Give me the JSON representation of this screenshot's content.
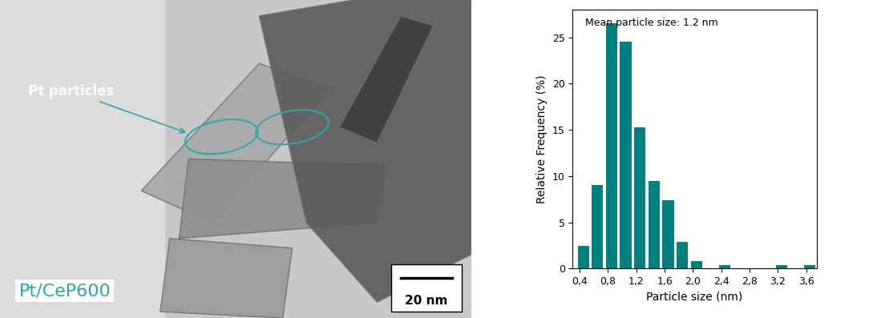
{
  "micrograph": {
    "annotation": "Pt particles",
    "sample": "Pt/CeP600",
    "scale_bar": "20 nm"
  },
  "chart_data": {
    "type": "histogram",
    "annotation": "Mean particle size: 1.2 nm",
    "x_label": "Particle size (nm)",
    "y_label": "Relative Frequency (%)",
    "bins": [
      0.35,
      0.55,
      0.75,
      0.95,
      1.15,
      1.35,
      1.55,
      1.75,
      1.95,
      2.15,
      2.35,
      2.55,
      2.75,
      2.95,
      3.15,
      3.35,
      3.55,
      3.75
    ],
    "counts": [
      2.5,
      9.0,
      26.5,
      24.5,
      15.3,
      9.5,
      7.4,
      2.9,
      0.8,
      0.0,
      0.4,
      0.0,
      0.0,
      0.0,
      0.4,
      0.0,
      0.4
    ],
    "color": "#00807f",
    "xlim": [
      0.3,
      3.75
    ],
    "xticks": [
      {
        "value": 0.4,
        "label": "0,4"
      },
      {
        "value": 0.8,
        "label": "0,8"
      },
      {
        "value": 1.2,
        "label": "1,2"
      },
      {
        "value": 1.6,
        "label": "1,6"
      },
      {
        "value": 2.0,
        "label": "2,0"
      },
      {
        "value": 2.4,
        "label": "2,4"
      },
      {
        "value": 2.8,
        "label": "2,8"
      },
      {
        "value": 3.2,
        "label": "3,2"
      },
      {
        "value": 3.6,
        "label": "3,6"
      }
    ],
    "ylim": [
      0,
      28
    ],
    "yticks": [
      0,
      5,
      10,
      15,
      20,
      25
    ]
  }
}
